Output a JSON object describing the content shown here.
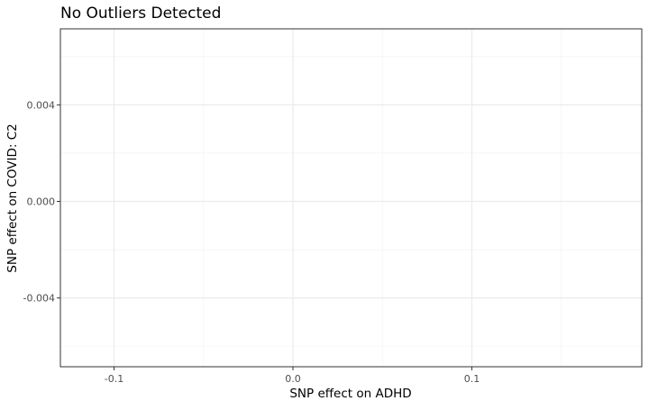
{
  "chart_data": {
    "type": "scatter",
    "title": "No Outliers Detected",
    "xlabel": "SNP effect on ADHD",
    "ylabel": "SNP effect on COVID: C2",
    "xlim": [
      -0.13,
      0.195
    ],
    "ylim": [
      -0.00685,
      0.00715
    ],
    "x_ticks": [
      -0.1,
      0.0,
      0.1
    ],
    "x_tick_labels": [
      "-0.1",
      "0.0",
      "0.1"
    ],
    "x_minor_ticks": [
      -0.05,
      0.05,
      0.15
    ],
    "y_ticks": [
      0.004,
      0.0,
      -0.004
    ],
    "y_tick_labels": [
      "0.004",
      "0.000",
      "-0.004"
    ],
    "y_minor_ticks": [
      0.006,
      0.002,
      -0.002,
      -0.006
    ],
    "grid": true,
    "points": []
  }
}
